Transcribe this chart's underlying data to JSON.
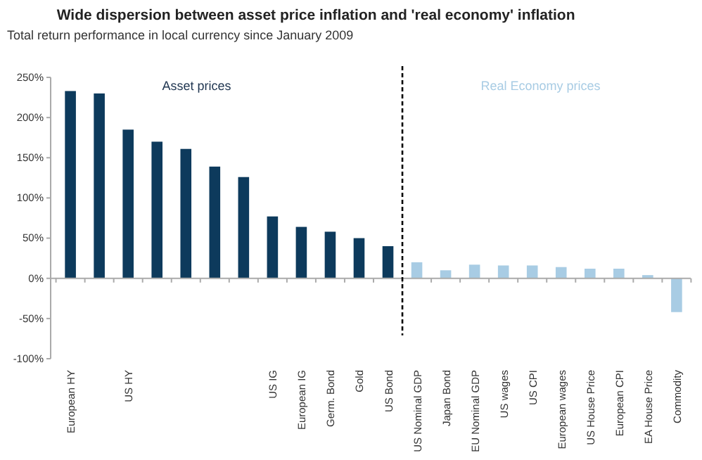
{
  "chart_data": {
    "type": "bar",
    "title": "Wide dispersion between asset price inflation and 'real economy' inflation",
    "subtitle": "Total return performance in local currency since January 2009",
    "categories": [
      "European HY",
      null,
      "US HY",
      null,
      null,
      null,
      null,
      "US IG",
      "European IG",
      "Germ. Bond",
      "Gold",
      "US Bond",
      "US Nominal GDP",
      "Japan Bond",
      "EU Nominal GDP",
      "US wages",
      "US CPI",
      "European wages",
      "US House Price",
      "European CPI",
      "EA House Price",
      "Commodity"
    ],
    "values": [
      233,
      230,
      185,
      170,
      161,
      139,
      126,
      77,
      64,
      58,
      50,
      40,
      20,
      10,
      17,
      16,
      16,
      14,
      12,
      12,
      4,
      -42
    ],
    "colors": [
      "#0d3a5c",
      "#0d3a5c",
      "#0d3a5c",
      "#0d3a5c",
      "#0d3a5c",
      "#0d3a5c",
      "#0d3a5c",
      "#0d3a5c",
      "#0d3a5c",
      "#0d3a5c",
      "#0d3a5c",
      "#0d3a5c",
      "#a8cce4",
      "#a8cce4",
      "#a8cce4",
      "#a8cce4",
      "#a8cce4",
      "#a8cce4",
      "#a8cce4",
      "#a8cce4",
      "#a8cce4",
      "#a8cce4"
    ],
    "ylim": [
      -100,
      250
    ],
    "yticks": [
      {
        "value": -100,
        "label": "-100%"
      },
      {
        "value": -50,
        "label": "-50%"
      },
      {
        "value": 0,
        "label": "0%"
      },
      {
        "value": 50,
        "label": "50%"
      },
      {
        "value": 100,
        "label": "100%"
      },
      {
        "value": 150,
        "label": "150%"
      },
      {
        "value": 200,
        "label": "200%"
      },
      {
        "value": 250,
        "label": "250%"
      }
    ],
    "annotations": [
      "Asset prices",
      "Real Economy prices"
    ],
    "ref_lines": [
      {
        "axis": "x",
        "value": "US Bond",
        "color": "#000000",
        "line_style": "dashed"
      }
    ],
    "grid": false
  }
}
